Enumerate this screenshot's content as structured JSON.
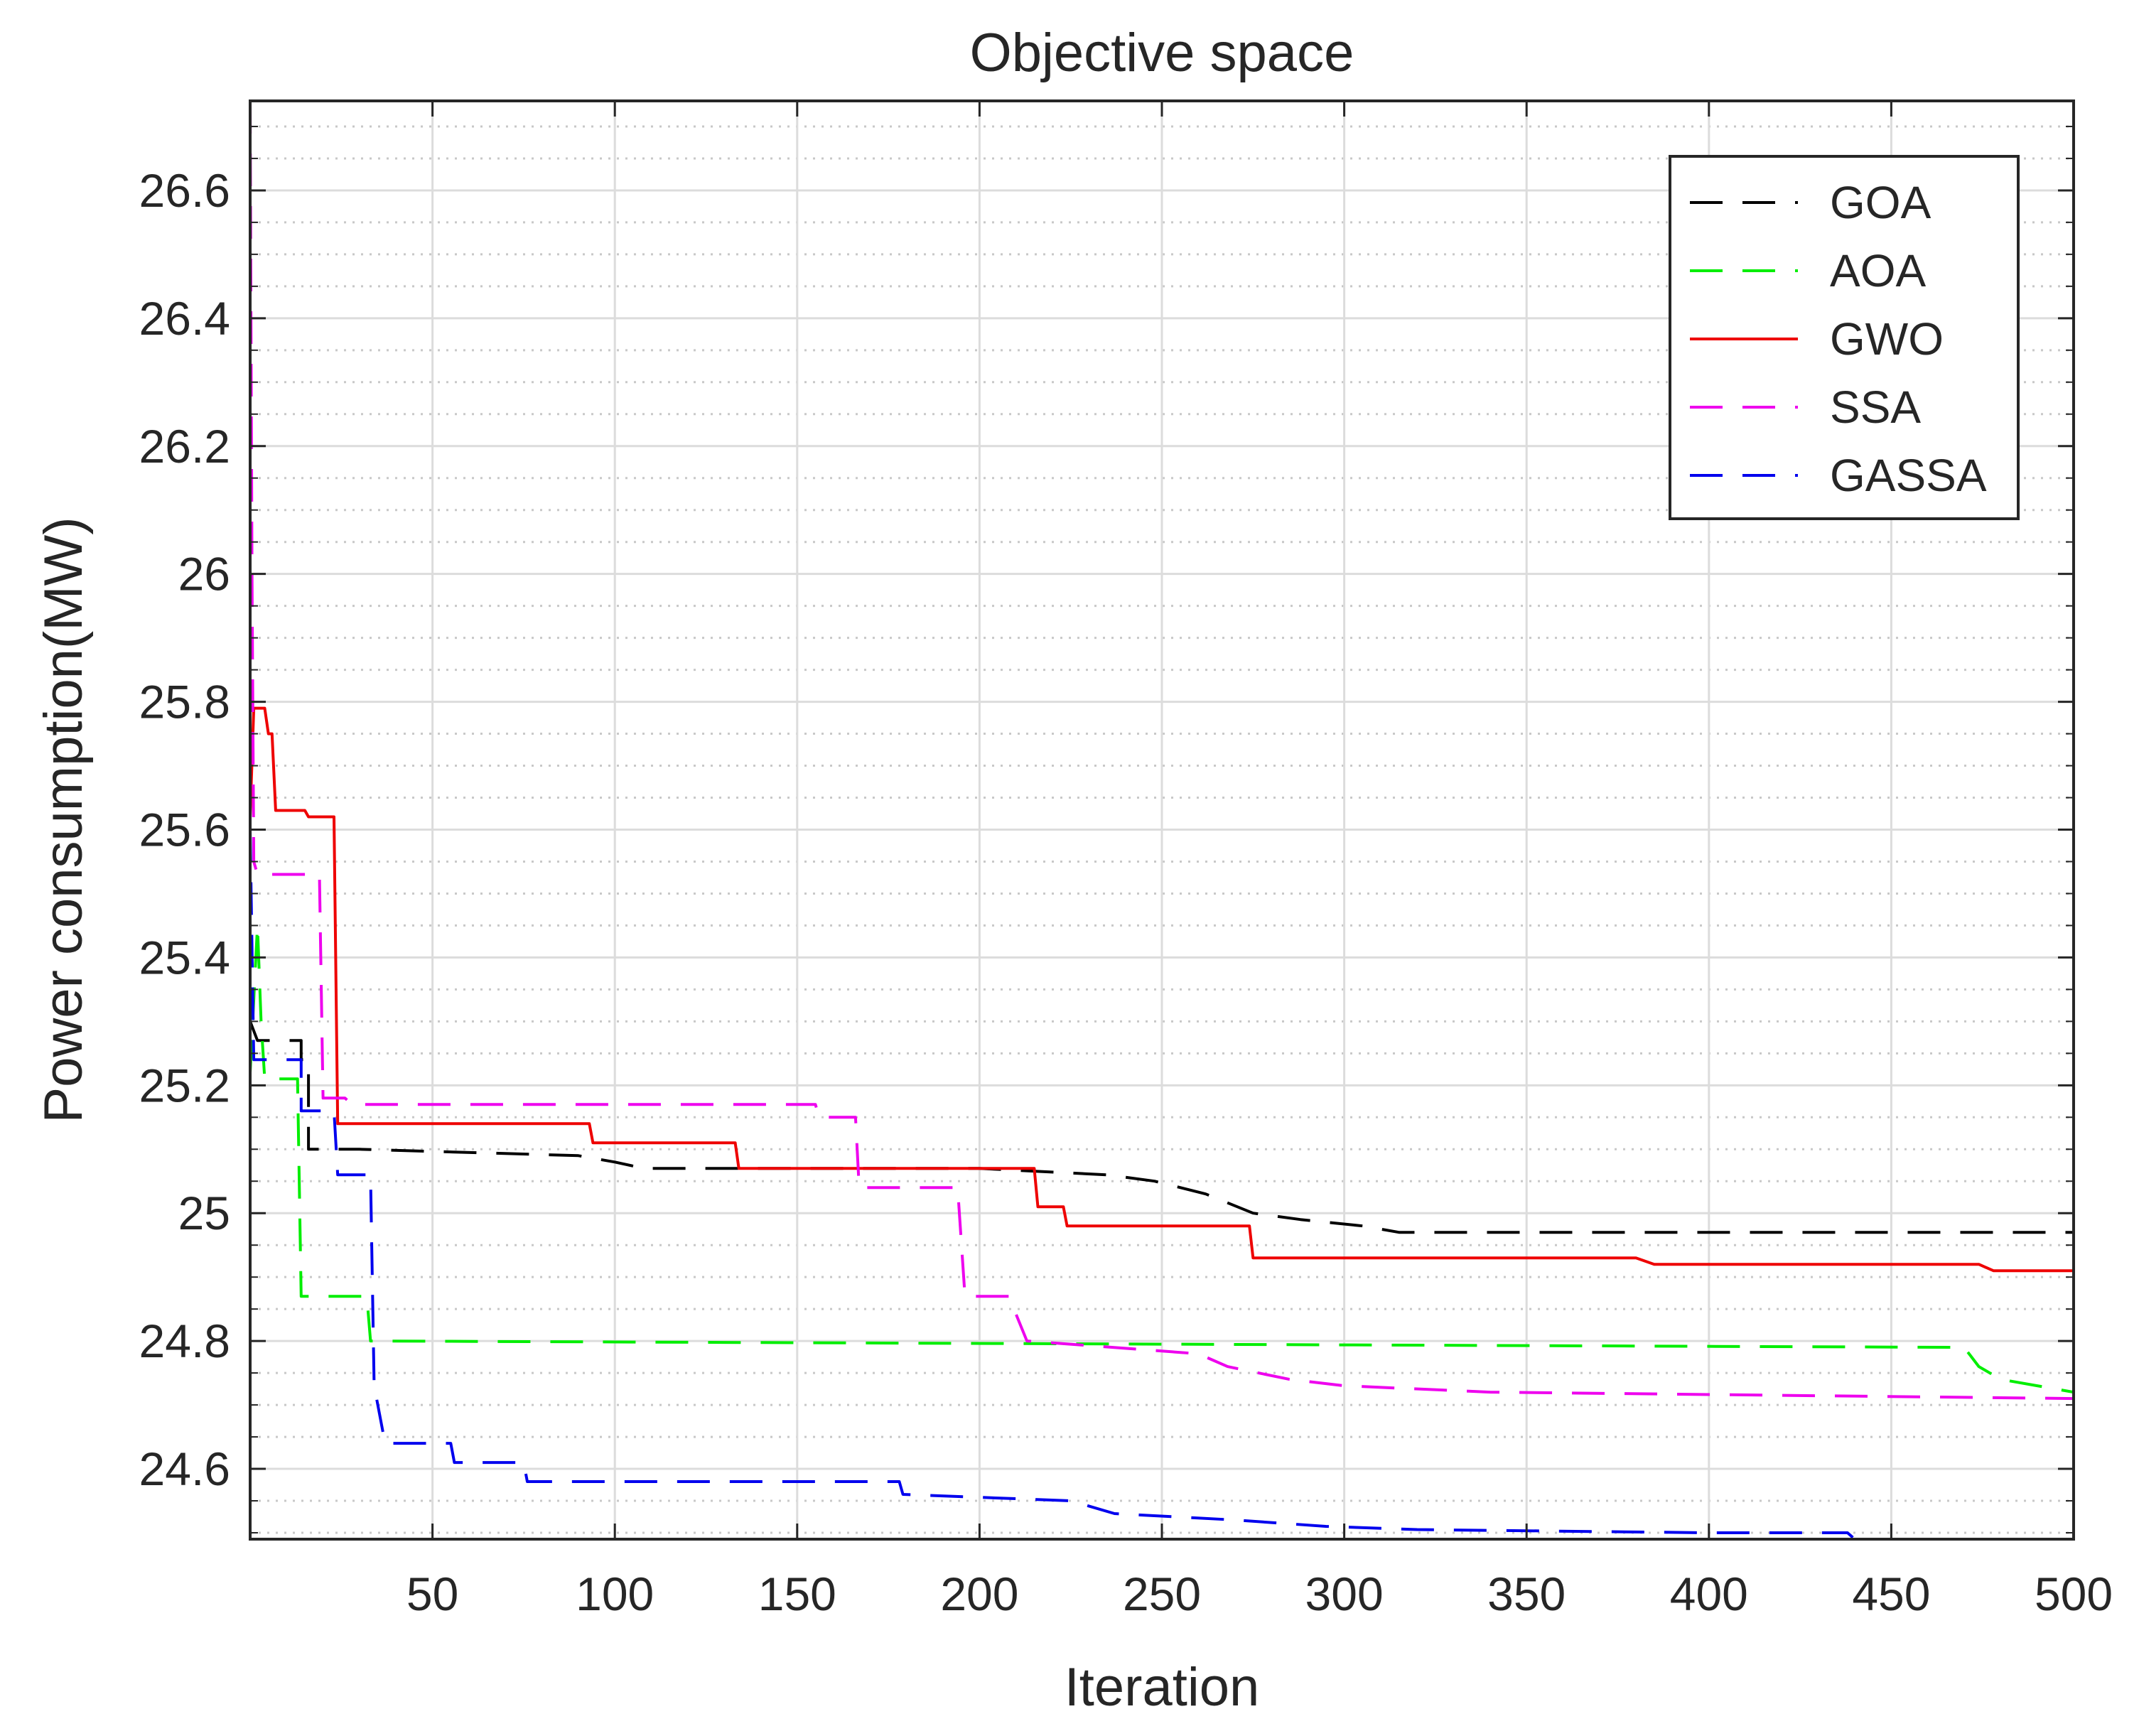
{
  "chart_data": {
    "type": "line",
    "title": "Objective space",
    "xlabel": "Iteration",
    "ylabel": "Power consumption(MW)",
    "xlim": [
      0,
      500
    ],
    "ylim": [
      24.49,
      26.74
    ],
    "xticks": [
      50,
      100,
      150,
      200,
      250,
      300,
      350,
      400,
      450,
      500
    ],
    "yticks": [
      24.6,
      24.8,
      25,
      25.2,
      25.4,
      25.6,
      25.8,
      26,
      26.2,
      26.4,
      26.6
    ],
    "ytick_labels": [
      "24.6",
      "24.8",
      "25",
      "25.2",
      "25.4",
      "25.6",
      "25.8",
      "26",
      "26.2",
      "26.4",
      "26.6"
    ],
    "xtick_labels": [
      "50",
      "100",
      "150",
      "200",
      "250",
      "300",
      "350",
      "400",
      "450",
      "500"
    ],
    "grid": true,
    "minor_grid": true,
    "legend_position": "top-right",
    "series": [
      {
        "name": "GOA",
        "color": "#000000",
        "dash": "dashed",
        "points": [
          [
            0,
            25.3
          ],
          [
            2,
            25.27
          ],
          [
            14,
            25.27
          ],
          [
            14,
            25.24
          ],
          [
            16,
            25.24
          ],
          [
            16,
            25.1
          ],
          [
            30,
            25.1
          ],
          [
            90,
            25.09
          ],
          [
            100,
            25.08
          ],
          [
            108,
            25.07
          ],
          [
            150,
            25.07
          ],
          [
            200,
            25.07
          ],
          [
            235,
            25.06
          ],
          [
            248,
            25.05
          ],
          [
            262,
            25.03
          ],
          [
            275,
            25.0
          ],
          [
            288,
            24.99
          ],
          [
            305,
            24.98
          ],
          [
            315,
            24.97
          ],
          [
            400,
            24.97
          ],
          [
            500,
            24.97
          ]
        ]
      },
      {
        "name": "AOA",
        "color": "#00ee00",
        "dash": "dashed",
        "points": [
          [
            0,
            25.22
          ],
          [
            2,
            25.45
          ],
          [
            3,
            25.3
          ],
          [
            4,
            25.21
          ],
          [
            13,
            25.21
          ],
          [
            14,
            24.87
          ],
          [
            32,
            24.87
          ],
          [
            33,
            24.8
          ],
          [
            470,
            24.79
          ],
          [
            474,
            24.76
          ],
          [
            480,
            24.74
          ],
          [
            490,
            24.73
          ],
          [
            500,
            24.72
          ]
        ]
      },
      {
        "name": "GWO",
        "color": "#ee0000",
        "dash": "solid",
        "points": [
          [
            0,
            25.62
          ],
          [
            1,
            25.79
          ],
          [
            4,
            25.79
          ],
          [
            5,
            25.75
          ],
          [
            6,
            25.75
          ],
          [
            7,
            25.63
          ],
          [
            15,
            25.63
          ],
          [
            16,
            25.62
          ],
          [
            23,
            25.62
          ],
          [
            24,
            25.14
          ],
          [
            93,
            25.14
          ],
          [
            94,
            25.11
          ],
          [
            133,
            25.11
          ],
          [
            134,
            25.07
          ],
          [
            215,
            25.07
          ],
          [
            216,
            25.01
          ],
          [
            223,
            25.01
          ],
          [
            224,
            24.98
          ],
          [
            274,
            24.98
          ],
          [
            275,
            24.93
          ],
          [
            380,
            24.93
          ],
          [
            385,
            24.92
          ],
          [
            474,
            24.92
          ],
          [
            478,
            24.91
          ],
          [
            500,
            24.91
          ]
        ]
      },
      {
        "name": "SSA",
        "color": "#ee00ee",
        "dash": "dashed",
        "points": [
          [
            0,
            26.74
          ],
          [
            0.5,
            26.0
          ],
          [
            1,
            25.55
          ],
          [
            2,
            25.53
          ],
          [
            19,
            25.53
          ],
          [
            20,
            25.18
          ],
          [
            26,
            25.18
          ],
          [
            28,
            25.17
          ],
          [
            155,
            25.17
          ],
          [
            156,
            25.15
          ],
          [
            166,
            25.15
          ],
          [
            167,
            25.04
          ],
          [
            194,
            25.04
          ],
          [
            196,
            24.87
          ],
          [
            208,
            24.87
          ],
          [
            213,
            24.8
          ],
          [
            260,
            24.78
          ],
          [
            268,
            24.76
          ],
          [
            285,
            24.74
          ],
          [
            300,
            24.73
          ],
          [
            340,
            24.72
          ],
          [
            500,
            24.71
          ]
        ]
      },
      {
        "name": "GASSA",
        "color": "#0000ee",
        "dash": "dashed",
        "points": [
          [
            0,
            25.6
          ],
          [
            1,
            25.24
          ],
          [
            14,
            25.24
          ],
          [
            14,
            25.16
          ],
          [
            23,
            25.16
          ],
          [
            24,
            25.06
          ],
          [
            33,
            25.06
          ],
          [
            34,
            24.73
          ],
          [
            37,
            24.64
          ],
          [
            55,
            24.64
          ],
          [
            56,
            24.61
          ],
          [
            75,
            24.61
          ],
          [
            76,
            24.58
          ],
          [
            178,
            24.58
          ],
          [
            179,
            24.56
          ],
          [
            225,
            24.55
          ],
          [
            237,
            24.53
          ],
          [
            270,
            24.52
          ],
          [
            295,
            24.51
          ],
          [
            320,
            24.505
          ],
          [
            400,
            24.5
          ],
          [
            438,
            24.5
          ],
          [
            440,
            24.49
          ],
          [
            500,
            24.49
          ]
        ]
      }
    ]
  }
}
